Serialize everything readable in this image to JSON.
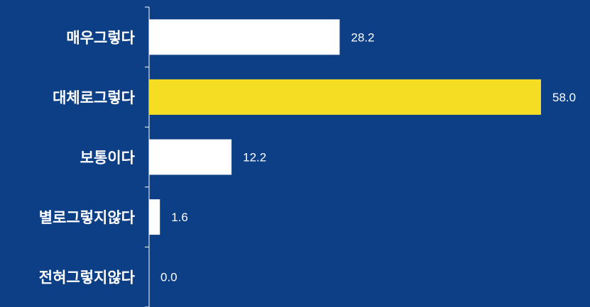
{
  "colors": {
    "background": "#0d3f86",
    "bar_default": "#ffffff",
    "bar_highlight": "#f5dd23",
    "text": "#ffffff"
  },
  "chart_data": {
    "type": "bar",
    "orientation": "horizontal",
    "categories": [
      "매우그렇다",
      "대체로그렇다",
      "보통이다",
      "별로그렇지않다",
      "전혀그렇지않다"
    ],
    "values": [
      28.2,
      58.0,
      12.2,
      1.6,
      0.0
    ],
    "value_labels": [
      "28.2",
      "58.0",
      "12.2",
      "1.6",
      "0.0"
    ],
    "highlight_index": 1,
    "xlim": [
      0,
      58.0
    ],
    "grid": false,
    "legend": "none"
  }
}
